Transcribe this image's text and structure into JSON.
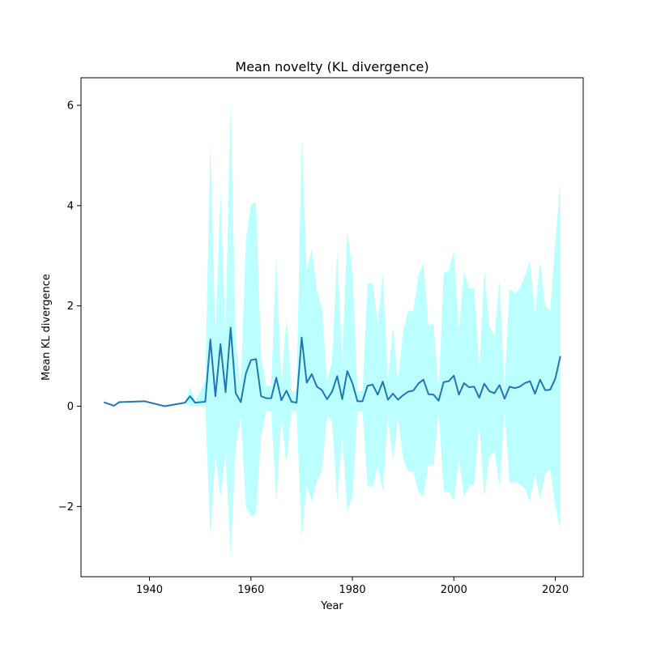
{
  "chart_data": {
    "type": "line",
    "title": "Mean novelty (KL divergence)",
    "xlabel": "Year",
    "ylabel": "Mean KL divergence",
    "xlim": [
      1926.5,
      2025.5
    ],
    "ylim": [
      -3.4,
      6.55
    ],
    "x_ticks": [
      1940,
      1960,
      1980,
      2000,
      2020
    ],
    "y_ticks": [
      -2,
      0,
      2,
      4,
      6
    ],
    "grid": false,
    "colors": {
      "line": "#1f77b4",
      "band": "#bbffff",
      "axes": "#000000"
    },
    "series": [
      {
        "x": [
          1931,
          1933,
          1934,
          1939,
          1943,
          1947,
          1948,
          1949,
          1951,
          1952,
          1953,
          1954,
          1955,
          1956,
          1957,
          1958,
          1959,
          1960,
          1961,
          1962,
          1963,
          1964,
          1965,
          1966,
          1967,
          1968,
          1969,
          1970,
          1971,
          1972,
          1973,
          1974,
          1975,
          1976,
          1977,
          1978,
          1979,
          1980,
          1981,
          1982,
          1983,
          1984,
          1985,
          1986,
          1987,
          1988,
          1989,
          1990,
          1991,
          1992,
          1993,
          1994,
          1995,
          1996,
          1997,
          1998,
          1999,
          2000,
          2001,
          2002,
          2003,
          2004,
          2005,
          2006,
          2007,
          2008,
          2009,
          2010,
          2011,
          2012,
          2013,
          2014,
          2015,
          2016,
          2017,
          2018,
          2019,
          2020,
          2021
        ],
        "values": [
          0.08,
          0.01,
          0.08,
          0.1,
          0.0,
          0.07,
          0.2,
          0.07,
          0.09,
          1.33,
          0.2,
          1.24,
          0.28,
          1.57,
          0.26,
          0.08,
          0.65,
          0.92,
          0.94,
          0.2,
          0.16,
          0.16,
          0.57,
          0.12,
          0.31,
          0.09,
          0.07,
          1.37,
          0.47,
          0.64,
          0.39,
          0.32,
          0.14,
          0.29,
          0.6,
          0.14,
          0.7,
          0.46,
          0.1,
          0.1,
          0.41,
          0.43,
          0.23,
          0.49,
          0.13,
          0.25,
          0.13,
          0.22,
          0.29,
          0.31,
          0.45,
          0.53,
          0.24,
          0.23,
          0.11,
          0.48,
          0.5,
          0.61,
          0.23,
          0.46,
          0.38,
          0.39,
          0.17,
          0.45,
          0.3,
          0.26,
          0.42,
          0.15,
          0.39,
          0.36,
          0.39,
          0.46,
          0.5,
          0.25,
          0.53,
          0.32,
          0.33,
          0.55,
          1.0
        ],
        "upper": [
          0.08,
          0.01,
          0.08,
          0.1,
          0.0,
          0.07,
          0.4,
          0.1,
          0.5,
          5.25,
          1.4,
          4.25,
          1.5,
          6.08,
          1.3,
          0.4,
          3.3,
          4.05,
          4.05,
          1.0,
          0.4,
          0.4,
          3.0,
          0.4,
          1.75,
          0.3,
          0.3,
          5.35,
          2.7,
          3.15,
          2.3,
          1.95,
          0.5,
          0.9,
          3.1,
          0.9,
          3.5,
          2.7,
          0.3,
          0.3,
          2.45,
          2.45,
          1.65,
          2.65,
          0.5,
          1.6,
          0.5,
          1.5,
          1.9,
          1.9,
          2.6,
          2.85,
          1.6,
          1.65,
          0.3,
          2.65,
          2.7,
          3.1,
          1.5,
          2.7,
          2.35,
          2.35,
          0.7,
          2.7,
          1.6,
          1.4,
          2.5,
          0.4,
          2.35,
          2.25,
          2.35,
          2.6,
          2.9,
          1.85,
          2.9,
          2.0,
          1.9,
          3.3,
          4.45
        ],
        "lower": [
          0.08,
          0.01,
          0.08,
          0.1,
          0.0,
          0.07,
          0.0,
          0.0,
          0.0,
          -2.6,
          -1.0,
          -1.8,
          -0.95,
          -3.0,
          -0.8,
          -0.2,
          -2.0,
          -2.2,
          -2.15,
          -0.6,
          -0.1,
          -0.1,
          -1.9,
          -0.2,
          -1.15,
          -0.1,
          -0.1,
          -2.6,
          -1.6,
          -1.9,
          -1.5,
          -1.3,
          -0.2,
          -0.3,
          -1.9,
          -0.6,
          -2.1,
          -1.8,
          -0.1,
          -0.1,
          -1.6,
          -1.6,
          -1.2,
          -1.7,
          -0.2,
          -1.1,
          -0.2,
          -1.05,
          -1.3,
          -1.3,
          -1.7,
          -1.8,
          -1.15,
          -1.2,
          -0.1,
          -1.7,
          -1.7,
          -1.9,
          -1.05,
          -1.8,
          -1.6,
          -1.55,
          -0.35,
          -1.8,
          -1.0,
          -0.9,
          -1.6,
          -0.1,
          -1.55,
          -1.5,
          -1.55,
          -1.65,
          -1.9,
          -1.35,
          -1.85,
          -1.35,
          -1.25,
          -2.0,
          -2.45
        ]
      }
    ]
  }
}
